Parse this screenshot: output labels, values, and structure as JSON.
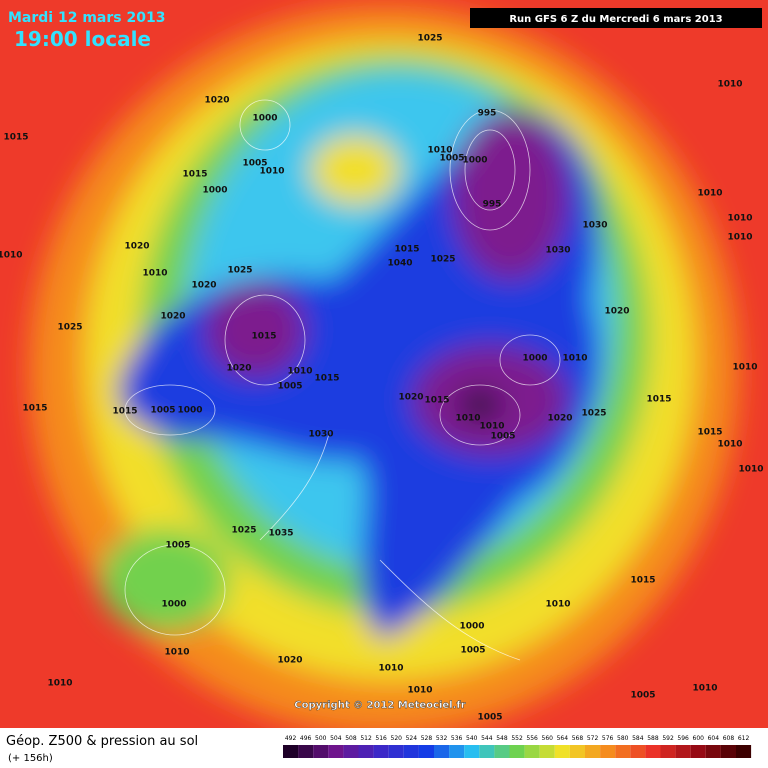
{
  "header": {
    "date": "Mardi 12 mars 2013",
    "time": "19:00 locale",
    "run": "Run GFS 6 Z du Mercredi 6 mars 2013"
  },
  "footer": {
    "title": "Géop. Z500 & pression au sol",
    "lead": "(+ 156h)",
    "copyright": "Copyright © 2012 Meteociel.fr"
  },
  "colorbar": {
    "values": [
      492,
      496,
      500,
      504,
      508,
      512,
      516,
      520,
      524,
      528,
      532,
      536,
      540,
      544,
      548,
      552,
      556,
      560,
      564,
      568,
      572,
      576,
      580,
      584,
      588,
      592,
      596,
      600,
      604,
      608,
      612
    ]
  },
  "isobar_labels": [
    1025,
    1010,
    1015,
    1020,
    1000,
    995,
    1010,
    1005,
    1000,
    1005,
    1010,
    1015,
    1000,
    995,
    1010,
    1010,
    1010,
    1030,
    1020,
    1015,
    1040,
    1025,
    1030,
    1010,
    1010,
    1025,
    1020,
    1020,
    1020,
    1025,
    1015,
    1000,
    1010,
    1020,
    1010,
    1005,
    1015,
    1010,
    1020,
    1015,
    1015,
    1015,
    1015,
    1005,
    1000,
    1010,
    1010,
    1020,
    1025,
    1005,
    1030,
    1015,
    1010,
    1010,
    1035,
    1025,
    1005,
    1015,
    1000,
    1010,
    1000,
    1010,
    1005,
    1020,
    1010,
    1010,
    1010,
    1010,
    1005,
    1005
  ]
}
